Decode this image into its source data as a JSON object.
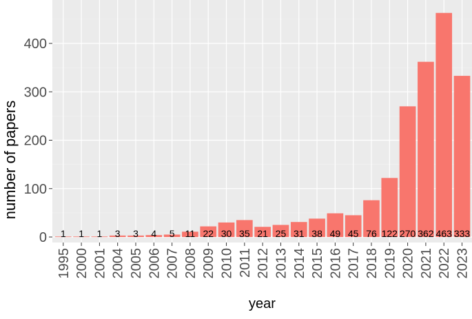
{
  "chart_data": {
    "type": "bar",
    "title": "",
    "xlabel": "year",
    "ylabel": "number of papers",
    "categories": [
      "1995",
      "2000",
      "2001",
      "2004",
      "2005",
      "2006",
      "2007",
      "2008",
      "2009",
      "2010",
      "2011",
      "2012",
      "2013",
      "2014",
      "2015",
      "2016",
      "2017",
      "2018",
      "2019",
      "2020",
      "2021",
      "2022",
      "2023"
    ],
    "values": [
      1,
      1,
      1,
      3,
      3,
      4,
      5,
      11,
      22,
      30,
      35,
      21,
      25,
      31,
      38,
      49,
      45,
      76,
      122,
      270,
      362,
      463,
      333
    ],
    "data_labels": [
      "1",
      "1",
      "1",
      "3",
      "3",
      "4",
      "5",
      "11",
      "22",
      "30",
      "35",
      "21",
      "25",
      "31",
      "38",
      "49",
      "45",
      "76",
      "122",
      "270",
      "362",
      "463",
      "333"
    ],
    "yticks": [
      0,
      100,
      200,
      300,
      400
    ],
    "ytick_labels": [
      "0",
      "100",
      "200",
      "300",
      "400"
    ],
    "ylim": [
      0,
      480
    ],
    "grid": true,
    "legend": "none",
    "colors": {
      "bar": "#F8766D",
      "panel": "#EBEBEB",
      "grid_major": "#FFFFFF",
      "grid_minor": "#F5F5F5",
      "text": "#000000",
      "tick_text": "#4D4D4D"
    }
  }
}
